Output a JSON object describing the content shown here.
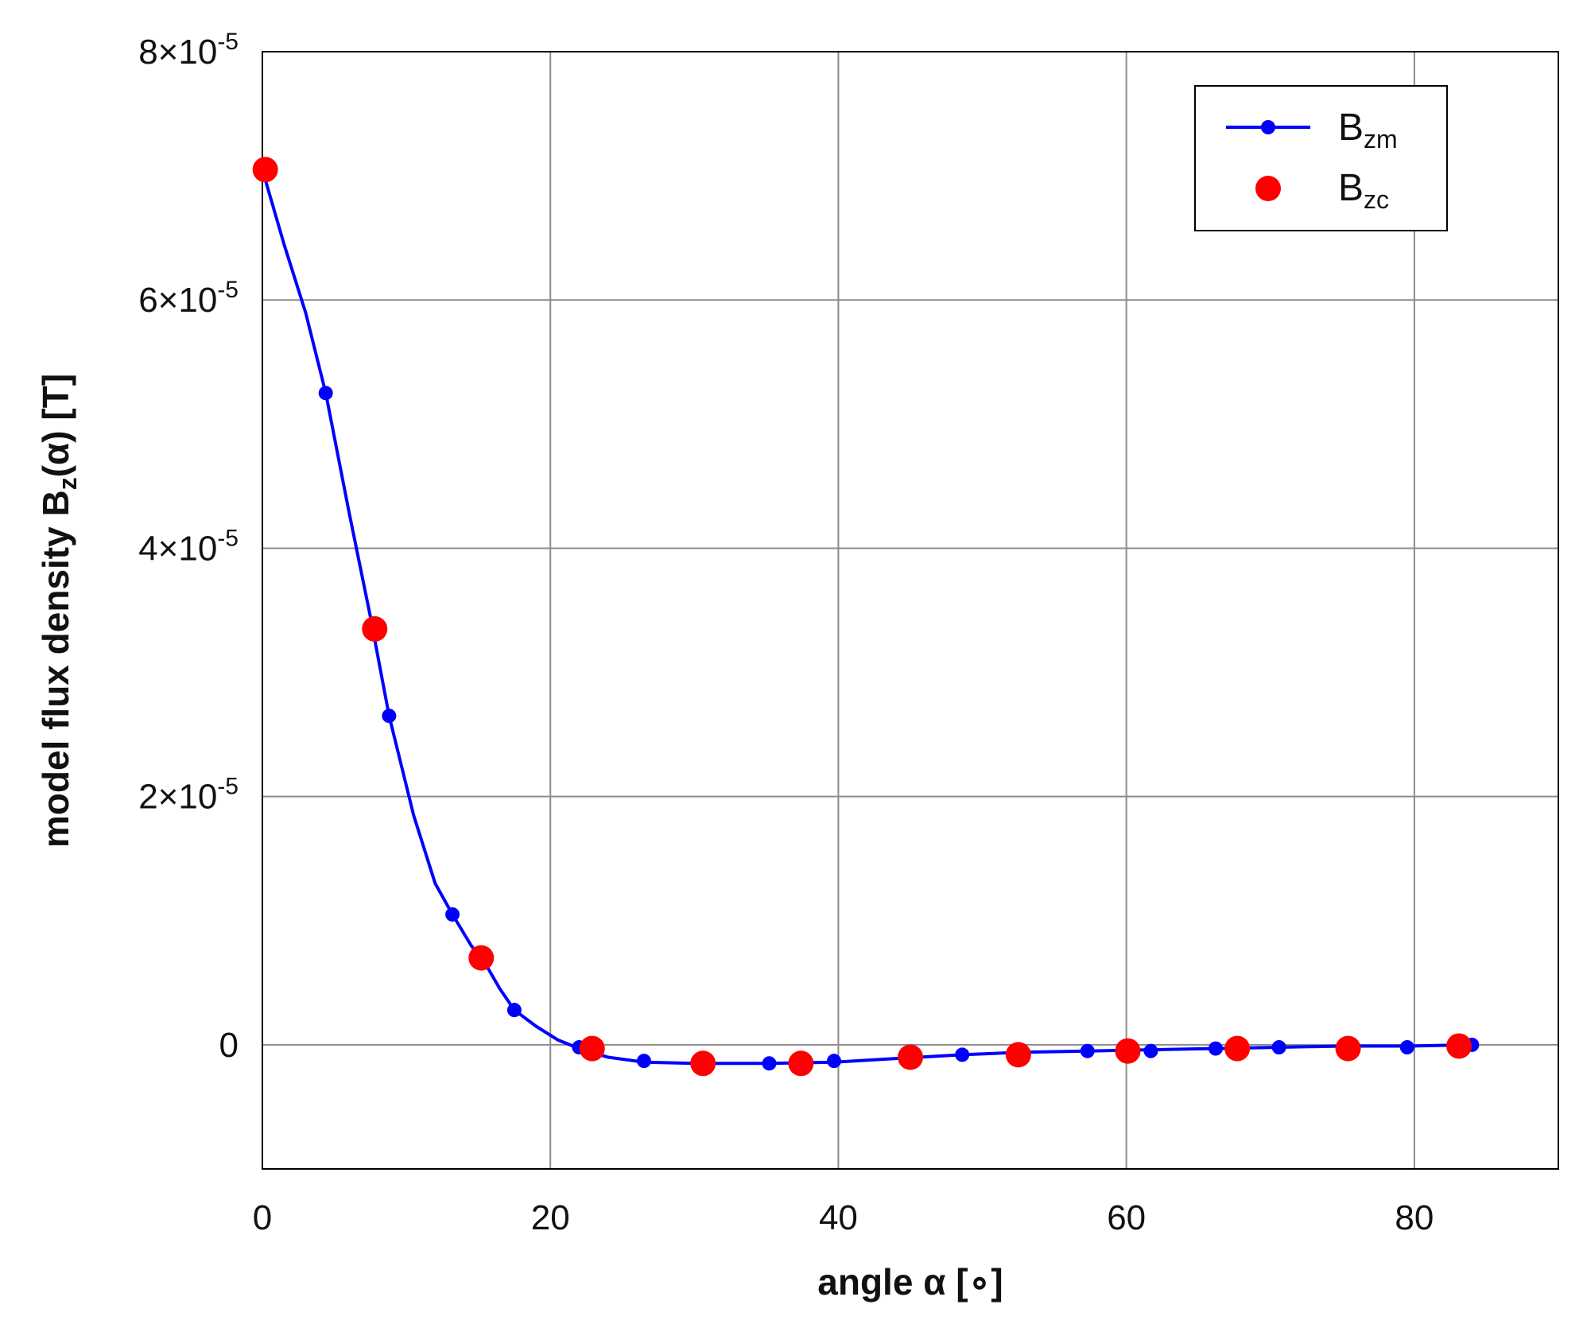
{
  "chart_data": {
    "type": "line",
    "xlabel": "angle α [∘]",
    "ylabel_main": "model flux density B",
    "ylabel_sub": "z",
    "ylabel_tail": "(α) [T]",
    "xlim": [
      0,
      90
    ],
    "ylim": [
      -1e-05,
      8e-05
    ],
    "x_ticks": [
      {
        "value": 0,
        "label": "0"
      },
      {
        "value": 20,
        "label": "20"
      },
      {
        "value": 40,
        "label": "40"
      },
      {
        "value": 60,
        "label": "60"
      },
      {
        "value": 80,
        "label": "80"
      }
    ],
    "y_ticks": [
      {
        "value": 0,
        "mant": "0",
        "exp": ""
      },
      {
        "value": 2e-05,
        "mant": "2×10",
        "exp": "-5"
      },
      {
        "value": 4e-05,
        "mant": "4×10",
        "exp": "-5"
      },
      {
        "value": 6e-05,
        "mant": "6×10",
        "exp": "-5"
      },
      {
        "value": 8e-05,
        "mant": "8×10",
        "exp": "-5"
      }
    ],
    "grid": true,
    "legend_position": "top-right",
    "series": [
      {
        "name_main": "B",
        "name_sub": "zm",
        "color": "#0000ff",
        "style": "line-with-markers",
        "curve": [
          [
            0.0,
            7.05e-05
          ],
          [
            1.5,
            6.45e-05
          ],
          [
            3.0,
            5.9e-05
          ],
          [
            4.4,
            5.25e-05
          ],
          [
            6.0,
            4.3e-05
          ],
          [
            7.5,
            3.45e-05
          ],
          [
            8.8,
            2.65e-05
          ],
          [
            10.5,
            1.85e-05
          ],
          [
            12.0,
            1.3e-05
          ],
          [
            13.2,
            1.05e-05
          ],
          [
            14.5,
            8e-06
          ],
          [
            15.5,
            6.5e-06
          ],
          [
            16.5,
            4.5e-06
          ],
          [
            17.5,
            2.8e-06
          ],
          [
            19.0,
            1.5e-06
          ],
          [
            20.5,
            4e-07
          ],
          [
            22.0,
            -3e-07
          ],
          [
            24.0,
            -1e-06
          ],
          [
            26.5,
            -1.4e-06
          ],
          [
            30.0,
            -1.5e-06
          ],
          [
            35.2,
            -1.5e-06
          ],
          [
            39.7,
            -1.4e-06
          ],
          [
            44.0,
            -1.1e-06
          ],
          [
            48.6,
            -8e-07
          ],
          [
            52.8,
            -6e-07
          ],
          [
            57.3,
            -5e-07
          ],
          [
            61.7,
            -4e-07
          ],
          [
            66.2,
            -3e-07
          ],
          [
            70.6,
            -2e-07
          ],
          [
            75.0,
            -1e-07
          ],
          [
            79.5,
            -1e-07
          ],
          [
            84.0,
            0.0
          ]
        ],
        "markers": [
          [
            0.0,
            7.05e-05
          ],
          [
            4.4,
            5.25e-05
          ],
          [
            8.8,
            2.65e-05
          ],
          [
            13.2,
            1.05e-05
          ],
          [
            17.5,
            2.8e-06
          ],
          [
            22.0,
            -2e-07
          ],
          [
            26.5,
            -1.3e-06
          ],
          [
            35.2,
            -1.5e-06
          ],
          [
            39.7,
            -1.3e-06
          ],
          [
            48.6,
            -8e-07
          ],
          [
            57.3,
            -5e-07
          ],
          [
            61.7,
            -5e-07
          ],
          [
            66.2,
            -3e-07
          ],
          [
            70.6,
            -2e-07
          ],
          [
            79.5,
            -2e-07
          ],
          [
            84.0,
            0.0
          ]
        ]
      },
      {
        "name_main": "B",
        "name_sub": "zc",
        "color": "#ff0000",
        "style": "markers-only",
        "markers": [
          [
            0.2,
            7.05e-05
          ],
          [
            7.8,
            3.35e-05
          ],
          [
            15.2,
            7e-06
          ],
          [
            22.9,
            -3e-07
          ],
          [
            30.6,
            -1.5e-06
          ],
          [
            37.4,
            -1.5e-06
          ],
          [
            45.0,
            -1e-06
          ],
          [
            52.5,
            -8e-07
          ],
          [
            60.1,
            -5e-07
          ],
          [
            67.7,
            -3e-07
          ],
          [
            75.4,
            -3e-07
          ],
          [
            83.1,
            -1e-07
          ]
        ]
      }
    ]
  }
}
